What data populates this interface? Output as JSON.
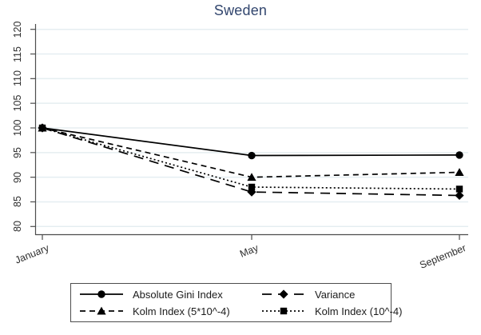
{
  "chart_data": {
    "type": "line",
    "title": "Sweden",
    "x": [
      "January",
      "May",
      "September"
    ],
    "series": [
      {
        "name": "Absolute Gini Index",
        "values": [
          100,
          94.4,
          94.5
        ],
        "marker": "circle",
        "linestyle": "solid"
      },
      {
        "name": "Variance",
        "values": [
          100,
          87.0,
          86.3
        ],
        "marker": "diamond",
        "linestyle": "longdash"
      },
      {
        "name": "Kolm Index (5*10^-4)",
        "values": [
          100,
          90.0,
          91.0
        ],
        "marker": "triangle",
        "linestyle": "dash"
      },
      {
        "name": "Kolm Index (10^-4)",
        "values": [
          100,
          88.0,
          87.6
        ],
        "marker": "square",
        "linestyle": "dot"
      }
    ],
    "ylim": [
      80,
      120
    ],
    "yticks": [
      80,
      85,
      90,
      95,
      100,
      105,
      110,
      115,
      120
    ],
    "grid": true,
    "legend_position": "bottom-center",
    "colors": {
      "line": "#000000",
      "grid": "#e5eef1",
      "axis": "#4d4d4d",
      "tick_label": "#2e2e2e",
      "title": "#32466e"
    }
  }
}
